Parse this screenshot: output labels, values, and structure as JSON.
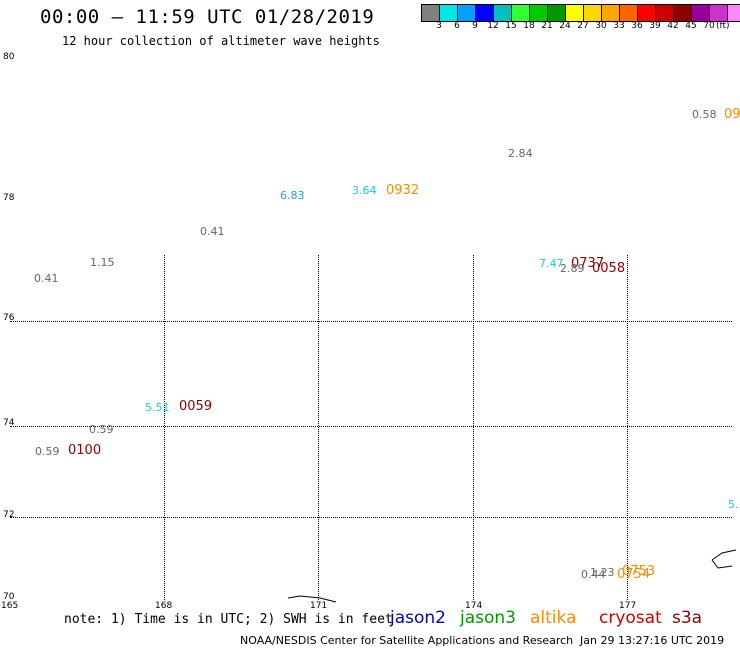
{
  "header": {
    "title": "00:00 – 11:59 UTC 01/28/2019",
    "subtitle": "12 hour collection of altimeter wave heights"
  },
  "colorbar": {
    "colors": [
      "#808080",
      "#00e5e5",
      "#00a0ff",
      "#0000ff",
      "#00bfbf",
      "#33ff33",
      "#00cc00",
      "#009900",
      "#ffff00",
      "#ffd700",
      "#ffa500",
      "#ff6600",
      "#ff0000",
      "#cc0000",
      "#8b0000",
      "#990099",
      "#cc33cc",
      "#ff88ff",
      "#000000"
    ],
    "labels": [
      "3",
      "6",
      "9",
      "12",
      "15",
      "18",
      "21",
      "24",
      "27",
      "30",
      "33",
      "36",
      "39",
      "42",
      "45",
      "70"
    ],
    "unit": "(ft)"
  },
  "grid": {
    "lat_labels": [
      "80",
      "78",
      "76",
      "74",
      "72",
      "70"
    ],
    "lon_labels": [
      "165",
      "168",
      "171",
      "174",
      "177"
    ]
  },
  "observations": [
    {
      "text": "0.58",
      "color": "#666666",
      "kind": "swh"
    },
    {
      "text": "09",
      "color": "#ff8c00",
      "kind": "time"
    },
    {
      "text": "2.84",
      "color": "#666666",
      "kind": "swh"
    },
    {
      "text": "6.83",
      "color": "#1ea0e0",
      "kind": "swh"
    },
    {
      "text": "3.64",
      "color": "#22c8d8",
      "kind": "swh"
    },
    {
      "text": "0932",
      "color": "#ff8c00",
      "kind": "time"
    },
    {
      "text": "0.41",
      "color": "#666666",
      "kind": "swh"
    },
    {
      "text": "1.15",
      "color": "#666666",
      "kind": "swh"
    },
    {
      "text": "0.41",
      "color": "#666666",
      "kind": "swh"
    },
    {
      "text": "7.47",
      "color": "#22c8d8",
      "kind": "swh"
    },
    {
      "text": "0737",
      "color": "#8b0000",
      "kind": "time"
    },
    {
      "text": "2.89",
      "color": "#666666",
      "kind": "swh"
    },
    {
      "text": "0058",
      "color": "#8b0000",
      "kind": "time"
    },
    {
      "text": "5.51",
      "color": "#22c8d8",
      "kind": "swh"
    },
    {
      "text": "0059",
      "color": "#8b0000",
      "kind": "time"
    },
    {
      "text": "0.59",
      "color": "#666666",
      "kind": "swh"
    },
    {
      "text": "0.59",
      "color": "#666666",
      "kind": "swh"
    },
    {
      "text": "0100",
      "color": "#8b0000",
      "kind": "time"
    },
    {
      "text": "5.",
      "color": "#22c8d8",
      "kind": "swh"
    },
    {
      "text": "1.23",
      "color": "#666666",
      "kind": "swh"
    },
    {
      "text": "0.44",
      "color": "#666666",
      "kind": "swh"
    },
    {
      "text": "0753",
      "color": "#ff8c00",
      "kind": "time"
    },
    {
      "text": "0754",
      "color": "#ff8c00",
      "kind": "time"
    }
  ],
  "footer": {
    "note": "note: 1) Time is in UTC; 2) SWH is in feet",
    "satellites": [
      {
        "name": "jason2",
        "color": "#0000cc"
      },
      {
        "name": "jason3",
        "color": "#009900"
      },
      {
        "name": "altika",
        "color": "#ff8c00"
      },
      {
        "name": "cryosat",
        "color": "#cc0000"
      },
      {
        "name": "s3a",
        "color": "#8b0000"
      }
    ],
    "credit": "NOAA/NESDIS Center for Satellite Applications and Research",
    "stamp": "Jan 29 13:27:16 UTC 2019"
  }
}
